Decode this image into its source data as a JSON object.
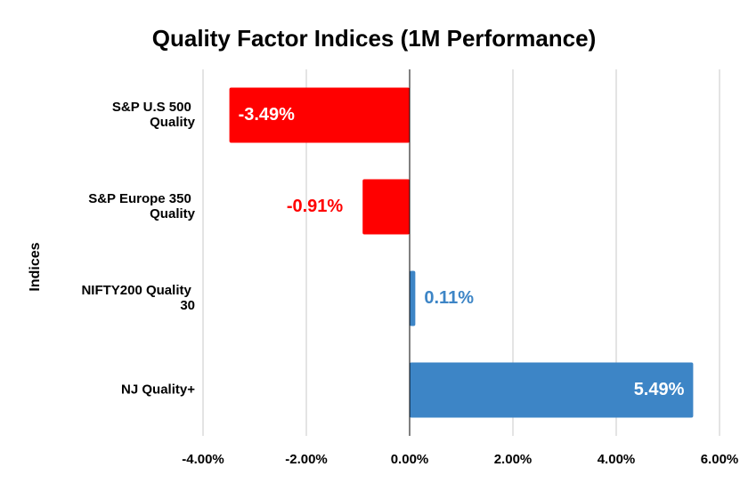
{
  "chart_data": {
    "type": "bar",
    "orientation": "horizontal",
    "title": "Quality Factor Indices (1M Performance)",
    "y_label": "Indices",
    "categories": [
      "S&P U.S 500 Quality",
      "S&P Europe 350 Quality",
      "NIFTY200 Quality 30",
      "NJ Quality+"
    ],
    "values": [
      -3.49,
      -0.91,
      0.11,
      5.49
    ],
    "value_labels": [
      "-3.49%",
      "-0.91%",
      "0.11%",
      "5.49%"
    ],
    "colors": [
      "#ff0000",
      "#ff0000",
      "#3d85c6",
      "#3d85c6"
    ],
    "xlim": [
      -4,
      6
    ],
    "xticks": [
      {
        "value": -4,
        "label": "-4.00%"
      },
      {
        "value": -2,
        "label": "-2.00%"
      },
      {
        "value": 0,
        "label": "0.00%"
      },
      {
        "value": 2,
        "label": "2.00%"
      },
      {
        "value": 4,
        "label": "4.00%"
      },
      {
        "value": 6,
        "label": "6.00%"
      }
    ],
    "grid": true
  }
}
